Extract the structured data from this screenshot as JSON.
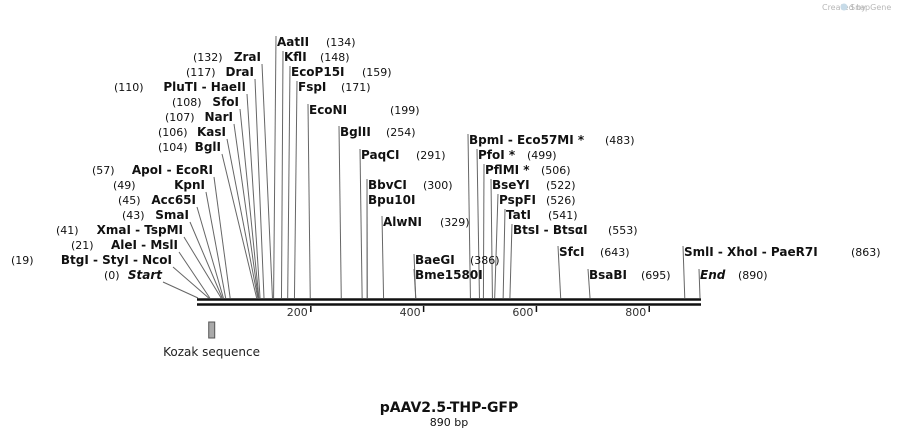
{
  "credit": {
    "text": "Created by",
    "brand": "SnapGene"
  },
  "map": {
    "name": "pAAV2.5-THP-GFP",
    "length_label": "890 bp",
    "length": 890
  },
  "ticks": [
    200,
    400,
    600,
    800
  ],
  "features": [
    {
      "name": "Kozak sequence",
      "start": 19,
      "end": 29,
      "color": "#a9a9a9"
    }
  ],
  "sites": [
    {
      "label": "AatII",
      "pos": 134,
      "pos_label": "(134)"
    },
    {
      "label": "KflI",
      "pos": 148,
      "pos_label": "(148)"
    },
    {
      "label": "EcoP15I",
      "pos": 159,
      "pos_label": "(159)"
    },
    {
      "label": "FspI",
      "pos": 171,
      "pos_label": "(171)"
    },
    {
      "label": "EcoNI",
      "pos": 199,
      "pos_label": "(199)"
    },
    {
      "label": "BglII",
      "pos": 254,
      "pos_label": "(254)"
    },
    {
      "label": "PaqCI",
      "pos": 291,
      "pos_label": "(291)"
    },
    {
      "label": "BbvCI",
      "pos": 300,
      "pos_label": "(300)"
    },
    {
      "label": "Bpu10I",
      "pos": 300,
      "pos_label": ""
    },
    {
      "label": "AlwNI",
      "pos": 329,
      "pos_label": "(329)"
    },
    {
      "label": "BaeGI",
      "pos": 386,
      "pos_label": "(386)"
    },
    {
      "label": "Bme1580I",
      "pos": 386,
      "pos_label": ""
    },
    {
      "label": "BpmI  -  Eco57MI *",
      "pos": 483,
      "pos_label": "(483)"
    },
    {
      "label": "PfoI *",
      "pos": 499,
      "pos_label": "(499)"
    },
    {
      "label": "PflMI *",
      "pos": 506,
      "pos_label": "(506)"
    },
    {
      "label": "BseYI",
      "pos": 522,
      "pos_label": "(522)"
    },
    {
      "label": "PspFI",
      "pos": 526,
      "pos_label": "(526)"
    },
    {
      "label": "TatI",
      "pos": 541,
      "pos_label": "(541)"
    },
    {
      "label": "BtsI  -  BtsαI",
      "pos": 553,
      "pos_label": "(553)"
    },
    {
      "label": "SfcI",
      "pos": 643,
      "pos_label": "(643)"
    },
    {
      "label": "BsaBI",
      "pos": 695,
      "pos_label": "(695)"
    },
    {
      "label": "SmlI  -  XhoI  -  PaeR7I",
      "pos": 863,
      "pos_label": "(863)"
    },
    {
      "label": "End",
      "pos": 890,
      "pos_label": "(890)",
      "italic": true
    },
    {
      "label": "ZraI",
      "pos": 132,
      "pos_label": "(132)"
    },
    {
      "label": "DraI",
      "pos": 117,
      "pos_label": "(117)"
    },
    {
      "label": "PluTI  -  HaeII",
      "pos": 110,
      "pos_label": "(110)"
    },
    {
      "label": "SfoI",
      "pos": 108,
      "pos_label": "(108)"
    },
    {
      "label": "NarI",
      "pos": 107,
      "pos_label": "(107)"
    },
    {
      "label": "KasI",
      "pos": 106,
      "pos_label": "(106)"
    },
    {
      "label": "BglI",
      "pos": 104,
      "pos_label": "(104)"
    },
    {
      "label": "ApoI  -  EcoRI",
      "pos": 57,
      "pos_label": "(57)"
    },
    {
      "label": "KpnI",
      "pos": 49,
      "pos_label": "(49)"
    },
    {
      "label": "Acc65I",
      "pos": 45,
      "pos_label": "(45)"
    },
    {
      "label": "SmaI",
      "pos": 43,
      "pos_label": "(43)"
    },
    {
      "label": "XmaI  -  TspMI",
      "pos": 41,
      "pos_label": "(41)"
    },
    {
      "label": "AleI  -  MslI",
      "pos": 21,
      "pos_label": "(21)"
    },
    {
      "label": "BtgI  -  StyI  -  NcoI",
      "pos": 19,
      "pos_label": "(19)"
    },
    {
      "label": "Start",
      "pos": 0,
      "pos_label": "(0)",
      "italic": true
    }
  ]
}
